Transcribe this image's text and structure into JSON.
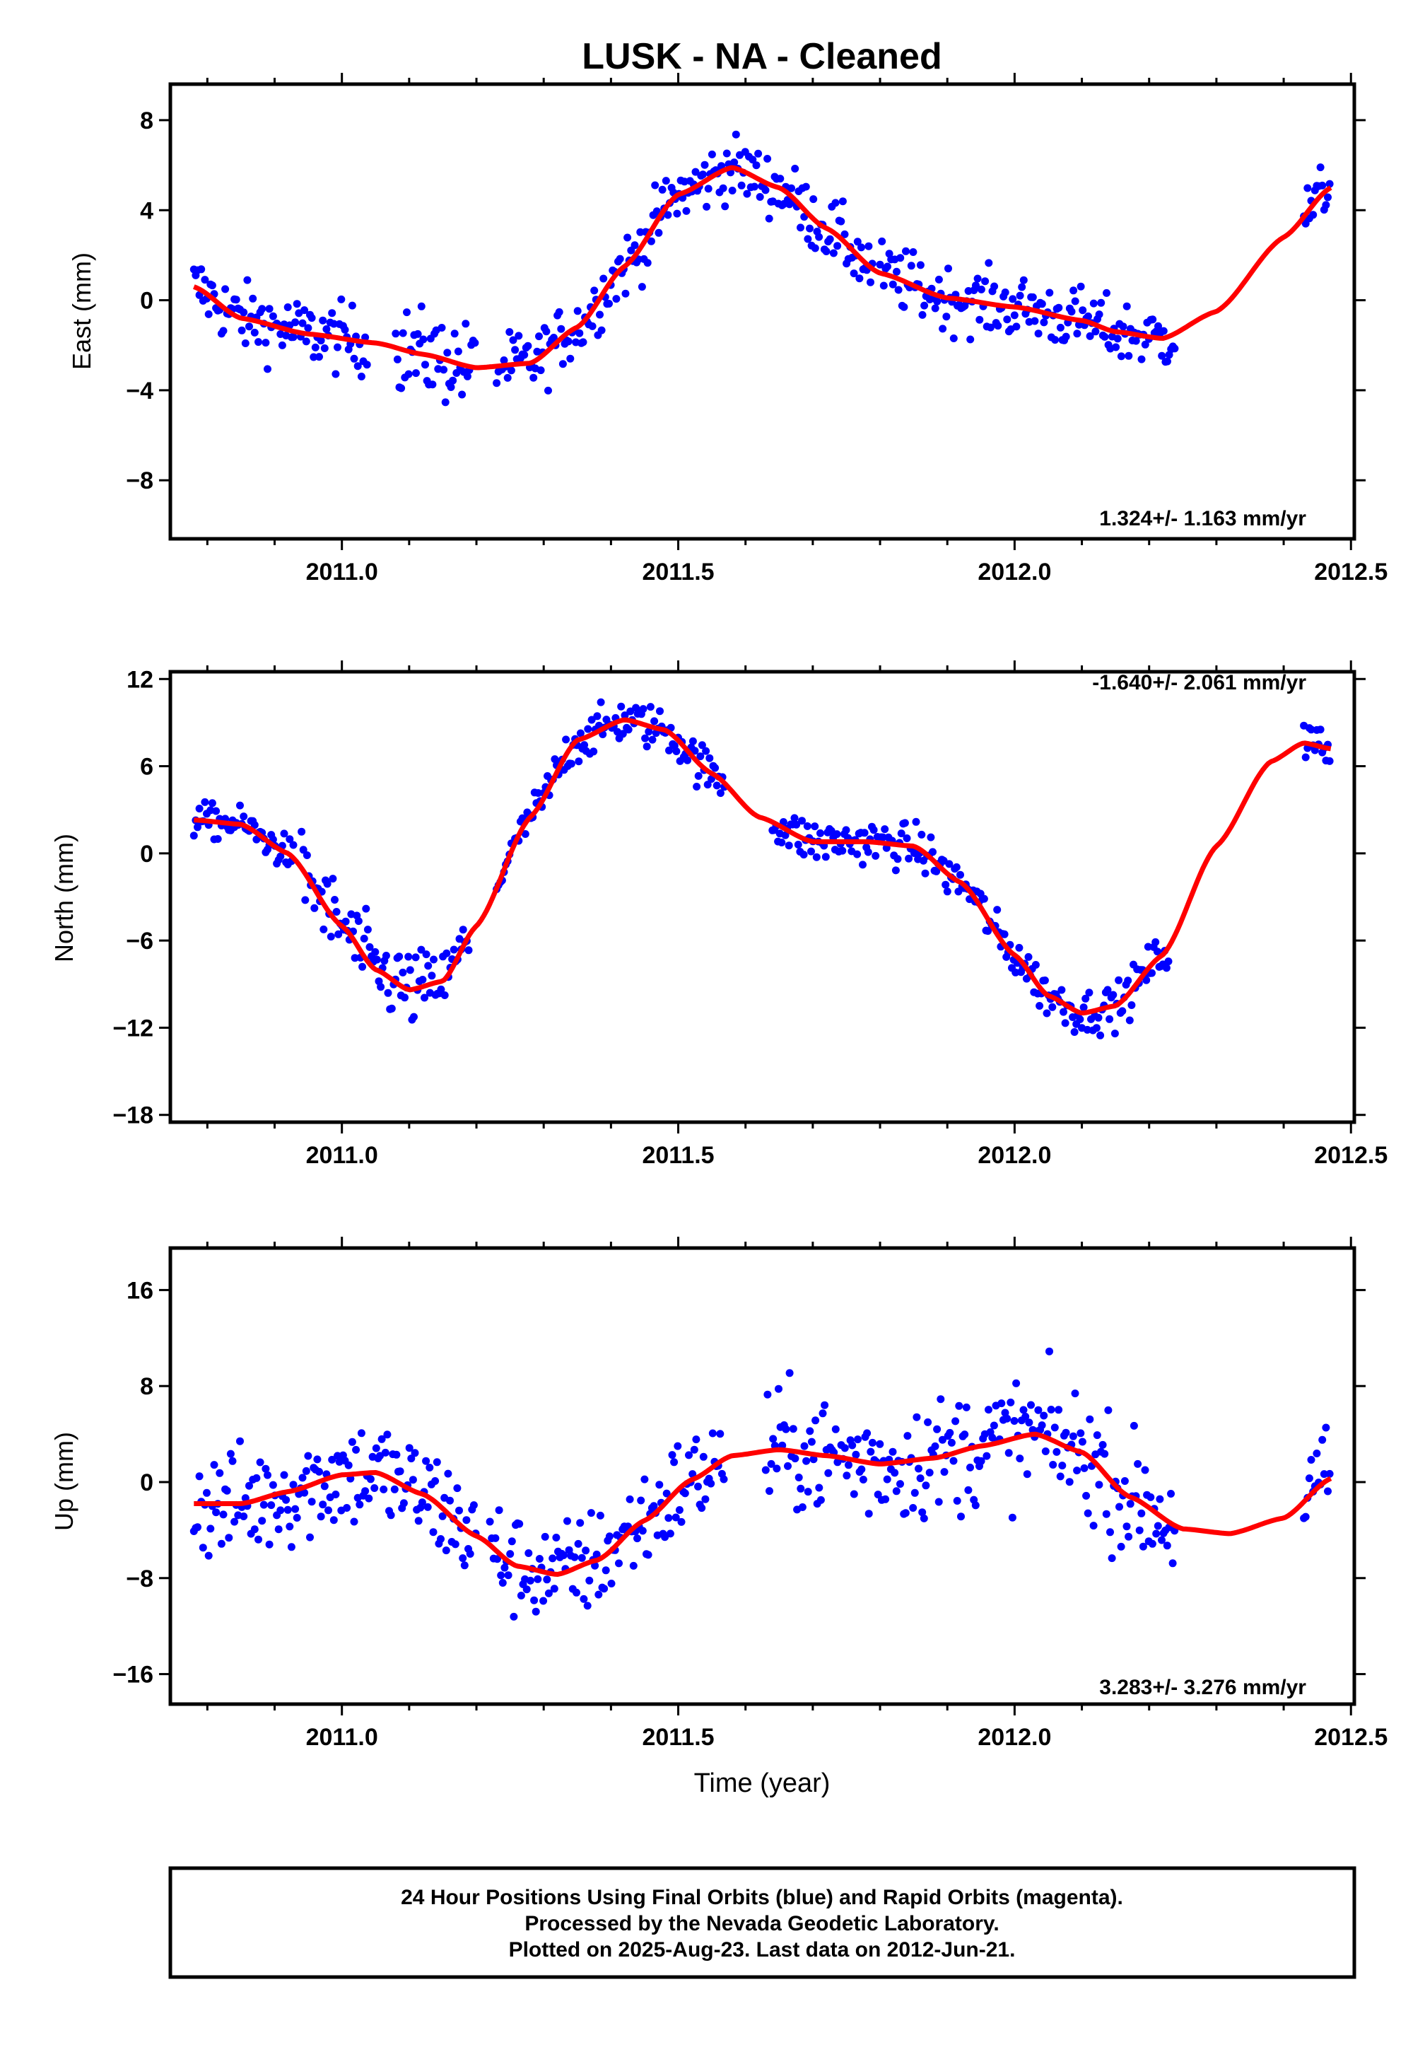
{
  "title": "LUSK  - NA - Cleaned",
  "xlabel": "Time (year)",
  "footer": {
    "lines": [
      "24 Hour Positions Using Final Orbits (blue) and Rapid Orbits (magenta).",
      "Processed by the Nevada Geodetic Laboratory.",
      "Plotted on 2025-Aug-23. Last data on 2012-Jun-21."
    ]
  },
  "colors": {
    "points": "#0000ff",
    "fit": "#ff0000",
    "frame": "#000000"
  },
  "chart_data": [
    {
      "type": "scatter",
      "name": "east",
      "ylabel": "East (mm)",
      "rate_label": "1.324+/- 1.163 mm/yr",
      "rate_position": "bottom-right",
      "xlim": [
        2010.745,
        2012.505
      ],
      "ylim": [
        -10.6,
        9.6
      ],
      "xticks": [
        2011.0,
        2011.5,
        2012.0,
        2012.5
      ],
      "xticklabels": [
        "2011.0",
        "2011.5",
        "2012.0",
        "2012.5"
      ],
      "yticks": [
        -8,
        -4,
        0,
        4,
        8
      ],
      "yticklabels": [
        "−8",
        "−4",
        "0",
        "4",
        "8"
      ],
      "fit": {
        "x": [
          2010.78,
          2010.85,
          2010.95,
          2011.05,
          2011.12,
          2011.2,
          2011.28,
          2011.35,
          2011.42,
          2011.5,
          2011.58,
          2011.65,
          2011.72,
          2011.8,
          2011.9,
          2012.0,
          2012.1,
          2012.15,
          2012.22,
          2012.3,
          2012.4,
          2012.47
        ],
        "y": [
          0.6,
          -0.8,
          -1.5,
          -1.9,
          -2.4,
          -3.0,
          -2.8,
          -1.2,
          1.5,
          4.7,
          5.9,
          5.0,
          3.2,
          1.2,
          0.1,
          -0.3,
          -0.9,
          -1.4,
          -1.7,
          -0.5,
          2.8,
          5.0
        ]
      },
      "segments": [
        {
          "start": 2010.78,
          "end": 2011.04,
          "noise": 1.4
        },
        {
          "start": 2011.08,
          "end": 2011.2,
          "noise": 1.8
        },
        {
          "start": 2011.23,
          "end": 2011.79,
          "noise": 1.3
        },
        {
          "start": 2011.8,
          "end": 2012.24,
          "noise": 1.3
        },
        {
          "start": 2012.43,
          "end": 2012.47,
          "noise": 1.2
        }
      ]
    },
    {
      "type": "scatter",
      "name": "north",
      "ylabel": "North (mm)",
      "rate_label": "-1.640+/- 2.061 mm/yr",
      "rate_position": "top-right",
      "xlim": [
        2010.745,
        2012.505
      ],
      "ylim": [
        -18.5,
        12.5
      ],
      "xticks": [
        2011.0,
        2011.5,
        2012.0,
        2012.5
      ],
      "xticklabels": [
        "2011.0",
        "2011.5",
        "2012.0",
        "2012.5"
      ],
      "yticks": [
        -18,
        -12,
        -6,
        0,
        6,
        12
      ],
      "yticklabels": [
        "−18",
        "−12",
        "−6",
        "0",
        "6",
        "12"
      ],
      "fit": {
        "x": [
          2010.78,
          2010.85,
          2010.92,
          2011.0,
          2011.05,
          2011.1,
          2011.15,
          2011.2,
          2011.28,
          2011.35,
          2011.42,
          2011.48,
          2011.55,
          2011.62,
          2011.7,
          2011.78,
          2011.85,
          2011.92,
          2012.0,
          2012.05,
          2012.1,
          2012.15,
          2012.22,
          2012.3,
          2012.38,
          2012.43,
          2012.47
        ],
        "y": [
          2.3,
          2.0,
          0.0,
          -5.0,
          -8.0,
          -9.4,
          -8.8,
          -5.0,
          2.5,
          7.8,
          9.2,
          8.5,
          5.5,
          2.5,
          0.8,
          0.8,
          0.5,
          -2.0,
          -7.0,
          -9.8,
          -11.0,
          -10.5,
          -7.0,
          0.5,
          6.3,
          7.6,
          7.2
        ]
      },
      "segments": [
        {
          "start": 2010.78,
          "end": 2010.93,
          "noise": 1.1
        },
        {
          "start": 2010.94,
          "end": 2011.12,
          "noise": 2.6
        },
        {
          "start": 2011.12,
          "end": 2011.19,
          "noise": 2.0
        },
        {
          "start": 2011.23,
          "end": 2011.27,
          "noise": 0.8
        },
        {
          "start": 2011.27,
          "end": 2011.57,
          "noise": 1.4
        },
        {
          "start": 2011.64,
          "end": 2012.23,
          "noise": 1.4
        },
        {
          "start": 2012.43,
          "end": 2012.47,
          "noise": 1.6
        }
      ]
    },
    {
      "type": "scatter",
      "name": "up",
      "ylabel": "Up (mm)",
      "rate_label": "3.283+/- 3.276 mm/yr",
      "rate_position": "bottom-right",
      "xlim": [
        2010.745,
        2012.505
      ],
      "ylim": [
        -18.5,
        19.5
      ],
      "xticks": [
        2011.0,
        2011.5,
        2012.0,
        2012.5
      ],
      "xticklabels": [
        "2011.0",
        "2011.5",
        "2012.0",
        "2012.5"
      ],
      "yticks": [
        -16,
        -8,
        0,
        8,
        16
      ],
      "yticklabels": [
        "−16",
        "−8",
        "0",
        "8",
        "16"
      ],
      "fit": {
        "x": [
          2010.78,
          2010.85,
          2010.92,
          2011.0,
          2011.05,
          2011.12,
          2011.2,
          2011.26,
          2011.32,
          2011.38,
          2011.45,
          2011.52,
          2011.58,
          2011.65,
          2011.72,
          2011.8,
          2011.88,
          2011.95,
          2012.03,
          2012.1,
          2012.17,
          2012.25,
          2012.32,
          2012.4,
          2012.47
        ],
        "y": [
          -1.8,
          -1.8,
          -0.8,
          0.6,
          0.8,
          -1.0,
          -4.5,
          -7.0,
          -7.7,
          -6.5,
          -3.2,
          0.2,
          2.2,
          2.7,
          2.2,
          1.5,
          2.0,
          3.0,
          4.0,
          2.5,
          -1.2,
          -3.9,
          -4.3,
          -3.0,
          0.3
        ]
      },
      "segments": [
        {
          "start": 2010.78,
          "end": 2011.2,
          "noise": 4.3
        },
        {
          "start": 2011.22,
          "end": 2011.57,
          "noise": 4.0
        },
        {
          "start": 2011.63,
          "end": 2012.24,
          "noise": 4.6
        },
        {
          "start": 2012.43,
          "end": 2012.47,
          "noise": 4.0
        }
      ]
    }
  ]
}
